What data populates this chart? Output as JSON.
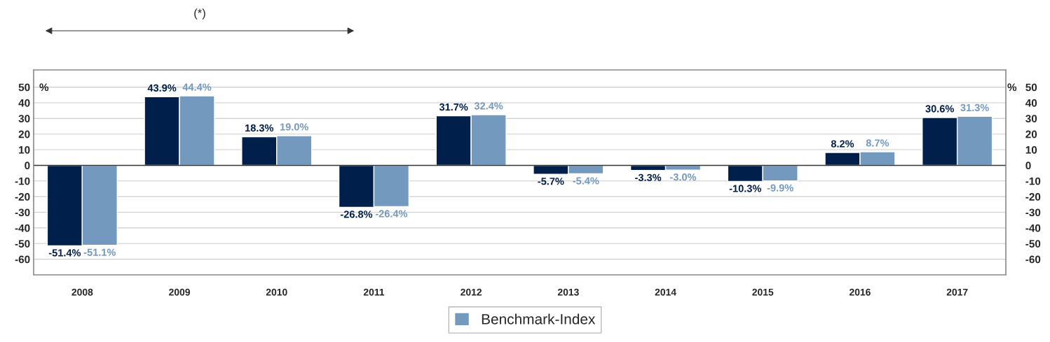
{
  "chart_data": {
    "type": "bar",
    "categories": [
      "2008",
      "2009",
      "2010",
      "2011",
      "2012",
      "2013",
      "2014",
      "2015",
      "2016",
      "2017"
    ],
    "series": [
      {
        "color": "#001f4b",
        "values": [
          -51.4,
          43.9,
          18.3,
          -26.8,
          31.7,
          -5.7,
          -3.3,
          -10.3,
          8.2,
          30.6
        ],
        "value_labels": [
          "-51.4%",
          "43.9%",
          "18.3%",
          "-26.8%",
          "31.7%",
          "-5.7%",
          "-3.3%",
          "-10.3%",
          "8.2%",
          "30.6%"
        ]
      },
      {
        "name": "Benchmark-Index",
        "color": "#7399bf",
        "values": [
          -51.1,
          44.4,
          19.0,
          -26.4,
          32.4,
          -5.4,
          -3.0,
          -9.9,
          8.7,
          31.3
        ],
        "value_labels": [
          "-51.1%",
          "44.4%",
          "19.0%",
          "-26.4%",
          "32.4%",
          "-5.4%",
          "-3.0%",
          "-9.9%",
          "8.7%",
          "31.3%"
        ]
      }
    ],
    "ylim": [
      -70,
      61
    ],
    "yticks": [
      -60,
      -50,
      -40,
      -30,
      -20,
      -10,
      0,
      10,
      20,
      30,
      40,
      50
    ],
    "y2lim": [
      -70,
      61
    ],
    "y2ticks": [
      -60,
      -50,
      -40,
      -30,
      -20,
      -10,
      0,
      10,
      20,
      30,
      40,
      50
    ],
    "ylabel": "%",
    "y2label": "%",
    "annotations": [
      "(*)"
    ],
    "grid": true,
    "legend": "bottom"
  }
}
